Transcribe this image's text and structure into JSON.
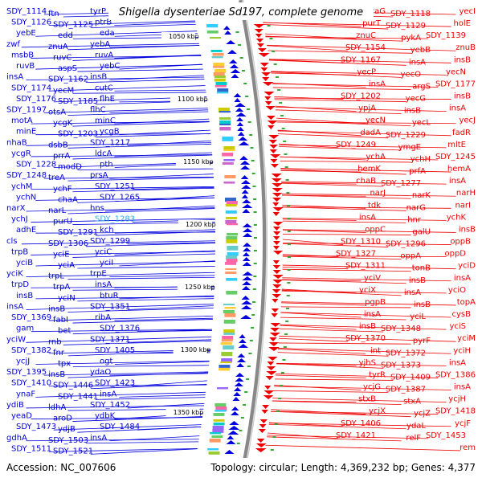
{
  "title": "Shigella dysenteriae Sd197, complete genome",
  "footer": {
    "accession": "Accession: NC_007606",
    "summary": "Topology: circular; Length: 4,369,232 bp; Genes: 4,377"
  },
  "colors": {
    "forward": "#0000dd",
    "reverse": "#ee0000",
    "highlight": "#33aaee",
    "backbone": "#888888",
    "tick": "#33aa33"
  },
  "kbp_ticks": [
    "1050 kbp",
    "1100 kbp",
    "1150 kbp",
    "1200 kbp",
    "1250 kbp",
    "1300 kbp",
    "1350 kbp"
  ],
  "left_labels": [
    "SDY_1114",
    "ftn",
    "tyrP",
    "SDY_1126",
    "SDY_1125",
    "ptrB",
    "yebE",
    "edd",
    "eda",
    "zwf",
    "znuA",
    "yebA",
    "msbB",
    "ruvC",
    "ruvA",
    "ruvB",
    "aspS",
    "yebC",
    "insA",
    "SDY_1162",
    "insB",
    "SDY_1174",
    "yecM",
    "cutC",
    "SDY_1176",
    "SDY_1185",
    "flhE",
    "SDY_1197",
    "otsA",
    "flhC",
    "motA",
    "ycgK",
    "minC",
    "minE",
    "SDY_1203",
    "ycgB",
    "nhaB",
    "dsbB",
    "SDY_1217",
    "ycgR",
    "prrA",
    "ldcA",
    "SDY_1228",
    "modD",
    "pth",
    "SDY_1248",
    "treA",
    "prsA",
    "ychM",
    "ychF",
    "SDY_1251",
    "ychN",
    "chaA",
    "SDY_1265",
    "narX",
    "narL",
    "hns",
    "ychJ",
    "purU",
    "SDY_1283",
    "adhE",
    "SDY_1291",
    "kch",
    "cls",
    "SDY_1306",
    "SDY_1299",
    "trpB",
    "yciE",
    "yciC",
    "yciB",
    "yciA",
    "yciI",
    "yciK",
    "trpL",
    "trpE",
    "trpD",
    "trpA",
    "insA",
    "insB",
    "yciN",
    "btuR",
    "insA",
    "insB",
    "SDY_1351",
    "SDY_1369",
    "fabI",
    "ribA",
    "gam",
    "bet",
    "SDY_1376",
    "yciW",
    "rnb",
    "SDY_1371",
    "SDY_1382",
    "fnr",
    "SDY_1405",
    "ycjJ",
    "tpx",
    "ogt",
    "SDY_1395",
    "insB",
    "ydaO",
    "SDY_1410",
    "SDY_1446",
    "SDY_1423",
    "ynaF",
    "SDY_1441",
    "insA",
    "ydiB",
    "ldhA",
    "SDY_1452",
    "yeaD",
    "aroD",
    "ydbK",
    "SDY_1473",
    "ydjB",
    "SDY_1484",
    "gdhA",
    "SDY_1503",
    "insA",
    "SDY_1511",
    "SDY_1521"
  ],
  "right_labels": [
    "yecI",
    "SDY_1118",
    "araG",
    "holE",
    "SDY_1129",
    "purT",
    "SDY_1139",
    "pykA",
    "znuC",
    "znuB",
    "yebB",
    "SDY_1154",
    "insB",
    "insA",
    "SDY_1167",
    "yecN",
    "yecO",
    "yecP",
    "SDY_1177",
    "argS",
    "insA",
    "insB",
    "yecG",
    "SDY_1202",
    "insA",
    "insB",
    "ypjA",
    "yecJ",
    "yecL",
    "yecN",
    "fadR",
    "SDY_1229",
    "dadA",
    "mltE",
    "ymgE",
    "SDY_1249",
    "SDY_1245",
    "ychH",
    "ychA",
    "hemA",
    "prfA",
    "hemK",
    "insA",
    "SDY_1277",
    "chaB",
    "narH",
    "narK",
    "narJ",
    "narI",
    "narG",
    "tdk",
    "ychK",
    "hnr",
    "insA",
    "insB",
    "galU",
    "oppC",
    "oppB",
    "SDY_1296",
    "SDY_1310",
    "oppD",
    "oppA",
    "SDY_1327",
    "yciD",
    "tonB",
    "SDY_1311",
    "insA",
    "insB",
    "yciV",
    "yciO",
    "insA",
    "yciX",
    "topA",
    "insB",
    "pgpB",
    "cysB",
    "yciL",
    "insA",
    "yciS",
    "SDY_1348",
    "insB",
    "yciM",
    "pyrF",
    "SDY_1370",
    "yciH",
    "SDY_1372",
    "int",
    "insA",
    "SDY_1373",
    "yjhS",
    "SDY_1386",
    "SDY_1409",
    "tyrR",
    "insA",
    "SDY_1387",
    "ycjG",
    "ycjH",
    "stxA",
    "stxB",
    "SDY_1418",
    "ycjZ",
    "ycjX",
    "ycjF",
    "ydaL",
    "SDY_1406",
    "SDY_1453",
    "relF",
    "SDY_1421",
    "rem"
  ]
}
